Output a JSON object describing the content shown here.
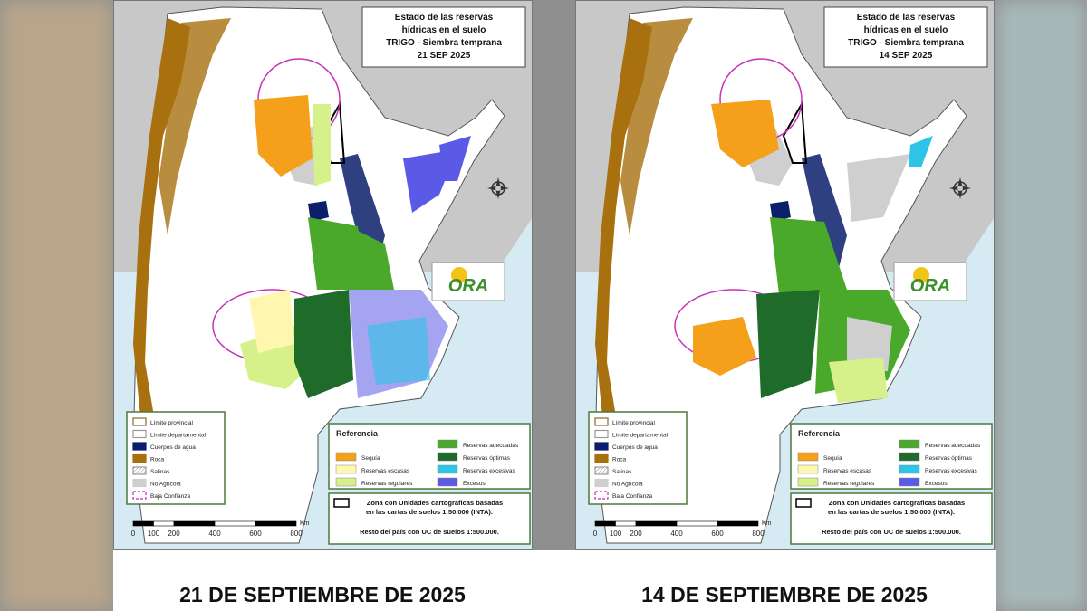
{
  "panels": [
    {
      "title": [
        "Estado de las reservas",
        "hídricas en el suelo",
        "TRIGO - Siembra temprana",
        "21 SEP 2025"
      ],
      "caption": "21 DE SEPTIEMBRE DE 2025",
      "variant": "a"
    },
    {
      "title": [
        "Estado de las reservas",
        "hídricas en el suelo",
        "TRIGO - Siembra temprana",
        "14 SEP 2025"
      ],
      "caption": "14 DE SEPTIEMBRE DE 2025",
      "variant": "b"
    }
  ],
  "logo": "ORA",
  "legend": [
    {
      "label": "Límite provincial",
      "color": "#ffffff",
      "border": "#8a6a2a"
    },
    {
      "label": "Límite departamental",
      "color": "#ffffff",
      "border": "#999999"
    },
    {
      "label": "Cuerpos de agua",
      "color": "#0b1f6b",
      "border": "#0b1f6b"
    },
    {
      "label": "Roca",
      "color": "#a8700f",
      "border": "#a8700f"
    },
    {
      "label": "Salinas",
      "color": "#eeeeee",
      "border": "#999999"
    },
    {
      "label": "No Agrícola",
      "color": "#cfcfcf",
      "border": "#cfcfcf"
    },
    {
      "label": "Baja Confianza",
      "color": "#ffffff",
      "border": "#d21fc4"
    }
  ],
  "reference": {
    "title": "Referencia",
    "items": [
      {
        "label": "Sequía",
        "color": "#f5a01a"
      },
      {
        "label": "Reservas escasas",
        "color": "#fff7b0"
      },
      {
        "label": "Reservas regulares",
        "color": "#d6f08a"
      },
      {
        "label": "Reservas adecuadas",
        "color": "#4aa82a"
      },
      {
        "label": "Reservas óptimas",
        "color": "#1e6b2a"
      },
      {
        "label": "Reservas excesivas",
        "color": "#2ec4e8"
      },
      {
        "label": "Excesos",
        "color": "#5a5ae6"
      }
    ]
  },
  "note": [
    "Zona con Unidades cartográficas basadas",
    "en las cartas de suelos 1:50.000 (INTA).",
    "Resto del país con UC de suelos 1:500.000."
  ],
  "scale": {
    "ticks": [
      0,
      100,
      200,
      400,
      600,
      800
    ],
    "unit": "Km"
  }
}
